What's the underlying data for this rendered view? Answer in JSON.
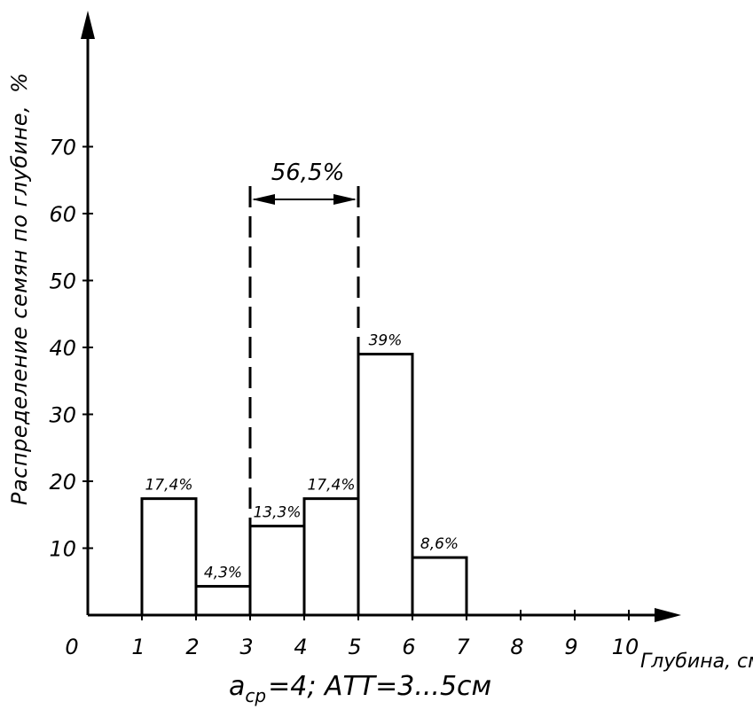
{
  "chart_data": {
    "type": "bar",
    "bins": [
      [
        1,
        2
      ],
      [
        2,
        3
      ],
      [
        3,
        4
      ],
      [
        4,
        5
      ],
      [
        5,
        6
      ],
      [
        6,
        7
      ]
    ],
    "values": [
      17.4,
      4.3,
      13.3,
      17.4,
      39,
      8.6
    ],
    "value_labels": [
      "17,4%",
      "4,3%",
      "13,3%",
      "17,4%",
      "39%",
      "8,6%"
    ],
    "x_ticks": [
      "0",
      "1",
      "2",
      "3",
      "4",
      "5",
      "6",
      "7",
      "8",
      "9",
      "10"
    ],
    "x_tick_values": [
      0,
      1,
      2,
      3,
      4,
      5,
      6,
      7,
      8,
      9,
      10
    ],
    "y_ticks": [
      "10",
      "20",
      "30",
      "40",
      "50",
      "60",
      "70"
    ],
    "y_tick_values": [
      10,
      20,
      30,
      40,
      50,
      60,
      70
    ],
    "xlabel": "Глубина, см",
    "ylabel": "Распределение семян по глубине,",
    "ylabel_unit": "%",
    "xlim": [
      0,
      11
    ],
    "ylim": [
      0,
      70
    ],
    "grid": false,
    "annotation": {
      "text": "56,5%",
      "range": [
        3,
        5
      ]
    }
  },
  "formula": {
    "a": "a",
    "sub": "ср",
    "rest": "=4;  АТТ=3...5см"
  },
  "colors": {
    "ink": "#000000",
    "background": "#ffffff"
  }
}
